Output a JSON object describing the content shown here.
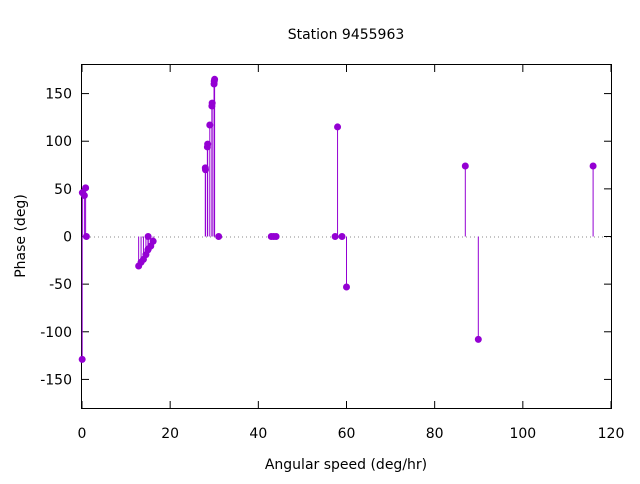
{
  "chart_data": {
    "type": "scatter",
    "style": "impulses-with-points",
    "title": "Station 9455963",
    "xlabel": "Angular speed (deg/hr)",
    "ylabel": "Phase (deg)",
    "xlim": [
      0,
      120
    ],
    "ylim": [
      -180,
      180
    ],
    "xticks": [
      0,
      20,
      40,
      60,
      80,
      100,
      120
    ],
    "yticks": [
      -150,
      -100,
      -50,
      0,
      50,
      100,
      150
    ],
    "xtick_labels": [
      "0",
      "20",
      "40",
      "60",
      "80",
      "100",
      "120"
    ],
    "ytick_labels": [
      "-150",
      "-100",
      "-50",
      "0",
      "50",
      "100",
      "150"
    ],
    "grid": false,
    "zero_line": "dotted",
    "color": "#9400d3",
    "points": [
      {
        "x": 0.04,
        "y": -129
      },
      {
        "x": 0.08,
        "y": 46
      },
      {
        "x": 0.54,
        "y": 43
      },
      {
        "x": 0.82,
        "y": 51
      },
      {
        "x": 1.0,
        "y": 0
      },
      {
        "x": 12.85,
        "y": -31
      },
      {
        "x": 13.4,
        "y": -27
      },
      {
        "x": 13.94,
        "y": -24
      },
      {
        "x": 14.5,
        "y": -19
      },
      {
        "x": 14.96,
        "y": -14
      },
      {
        "x": 15.0,
        "y": 0
      },
      {
        "x": 15.04,
        "y": -13
      },
      {
        "x": 15.6,
        "y": -10
      },
      {
        "x": 16.14,
        "y": -5
      },
      {
        "x": 27.97,
        "y": 72
      },
      {
        "x": 28.01,
        "y": 70
      },
      {
        "x": 28.44,
        "y": 94
      },
      {
        "x": 28.51,
        "y": 97
      },
      {
        "x": 28.99,
        "y": 117
      },
      {
        "x": 29.46,
        "y": 137
      },
      {
        "x": 29.53,
        "y": 140
      },
      {
        "x": 29.96,
        "y": 160
      },
      {
        "x": 30.0,
        "y": 163
      },
      {
        "x": 30.08,
        "y": 165
      },
      {
        "x": 31.0,
        "y": 0
      },
      {
        "x": 42.93,
        "y": 0
      },
      {
        "x": 43.48,
        "y": 0
      },
      {
        "x": 44.03,
        "y": 0
      },
      {
        "x": 57.42,
        "y": 0
      },
      {
        "x": 57.97,
        "y": 115
      },
      {
        "x": 58.98,
        "y": 0
      },
      {
        "x": 60.0,
        "y": -53
      },
      {
        "x": 86.95,
        "y": 74
      },
      {
        "x": 89.9,
        "y": -108
      },
      {
        "x": 115.94,
        "y": 74
      }
    ]
  }
}
